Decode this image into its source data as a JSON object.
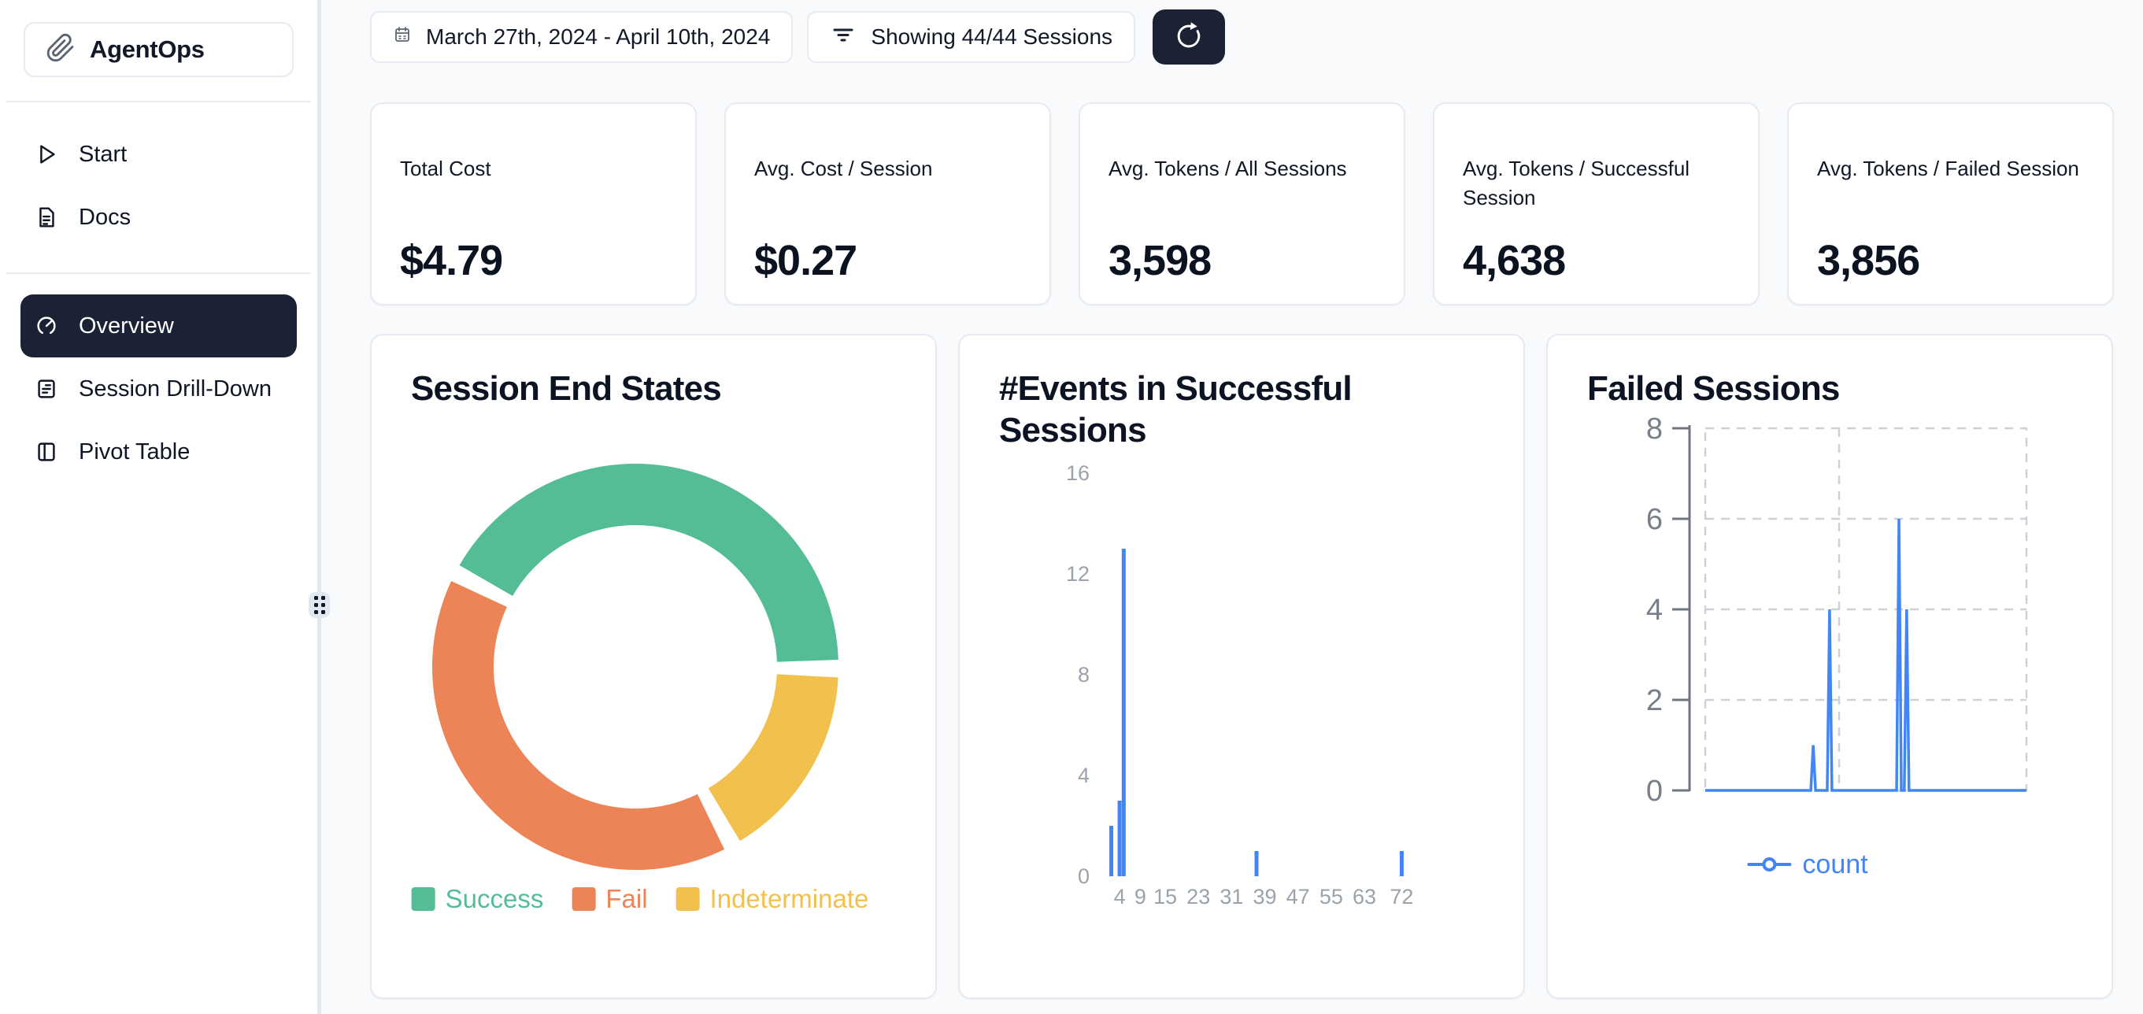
{
  "sidebar": {
    "logo_text": "AgentOps",
    "items": [
      {
        "label": "Start"
      },
      {
        "label": "Docs"
      }
    ],
    "items_lower": [
      {
        "label": "Overview",
        "active": true
      },
      {
        "label": "Session Drill-Down",
        "active": false
      },
      {
        "label": "Pivot Table",
        "active": false
      }
    ]
  },
  "topbar": {
    "date_range": "March 27th, 2024 - April 10th, 2024",
    "sessions_filter": "Showing 44/44 Sessions"
  },
  "stats": [
    {
      "label": "Total Cost",
      "value": "$4.79"
    },
    {
      "label": "Avg. Cost / Session",
      "value": "$0.27"
    },
    {
      "label": "Avg. Tokens / All Sessions",
      "value": "3,598"
    },
    {
      "label": "Avg. Tokens / Successful Session",
      "value": "4,638"
    },
    {
      "label": "Avg. Tokens / Failed Session",
      "value": "3,856"
    }
  ],
  "colors": {
    "success_green": "#54bd96",
    "fail_orange": "#ed8457",
    "indeterminate_yellow": "#f2c04d",
    "chart_blue": "#4285f4",
    "dark_navy": "#1a2233",
    "axis_gray": "#9aa2ab"
  },
  "chart_data": [
    {
      "type": "pie",
      "title": "Session End States",
      "legend_position": "bottom",
      "donut": true,
      "start_deg": -60,
      "gap_deg": 5,
      "draw_order": [
        0,
        2,
        1
      ],
      "segments": [
        {
          "label": "Success",
          "color": "#54bd96",
          "degrees": 148,
          "percent": 41
        },
        {
          "label": "Fail",
          "color": "#ed8457",
          "degrees": 141,
          "percent": 39
        },
        {
          "label": "Indeterminate",
          "color": "#f2c04d",
          "degrees": 56,
          "percent": 16
        }
      ]
    },
    {
      "type": "bar",
      "title": "#Events in Successful Sessions",
      "color": "#4285f4",
      "bars": [
        {
          "x": 2,
          "count": 2
        },
        {
          "x": 4,
          "count": 3
        },
        {
          "x": 5,
          "count": 13
        },
        {
          "x": 37,
          "count": 1
        },
        {
          "x": 72,
          "count": 1
        }
      ],
      "xticks": [
        4,
        9,
        15,
        23,
        31,
        39,
        47,
        55,
        63,
        72
      ],
      "yticks": [
        0,
        4,
        8,
        12,
        16
      ],
      "ylim": [
        0,
        16
      ],
      "grid": false
    },
    {
      "type": "line",
      "title": "Failed Sessions",
      "series_name": "count",
      "color": "#4285f4",
      "yticks": [
        0,
        2,
        4,
        6,
        8
      ],
      "ylim": [
        0,
        8
      ],
      "grid": "dashed",
      "baseline": 0,
      "spikes": [
        {
          "x_frac": 0.336,
          "count": 1
        },
        {
          "x_frac": 0.387,
          "count": 4
        },
        {
          "x_frac": 0.603,
          "count": 6
        },
        {
          "x_frac": 0.627,
          "count": 4
        }
      ]
    }
  ]
}
